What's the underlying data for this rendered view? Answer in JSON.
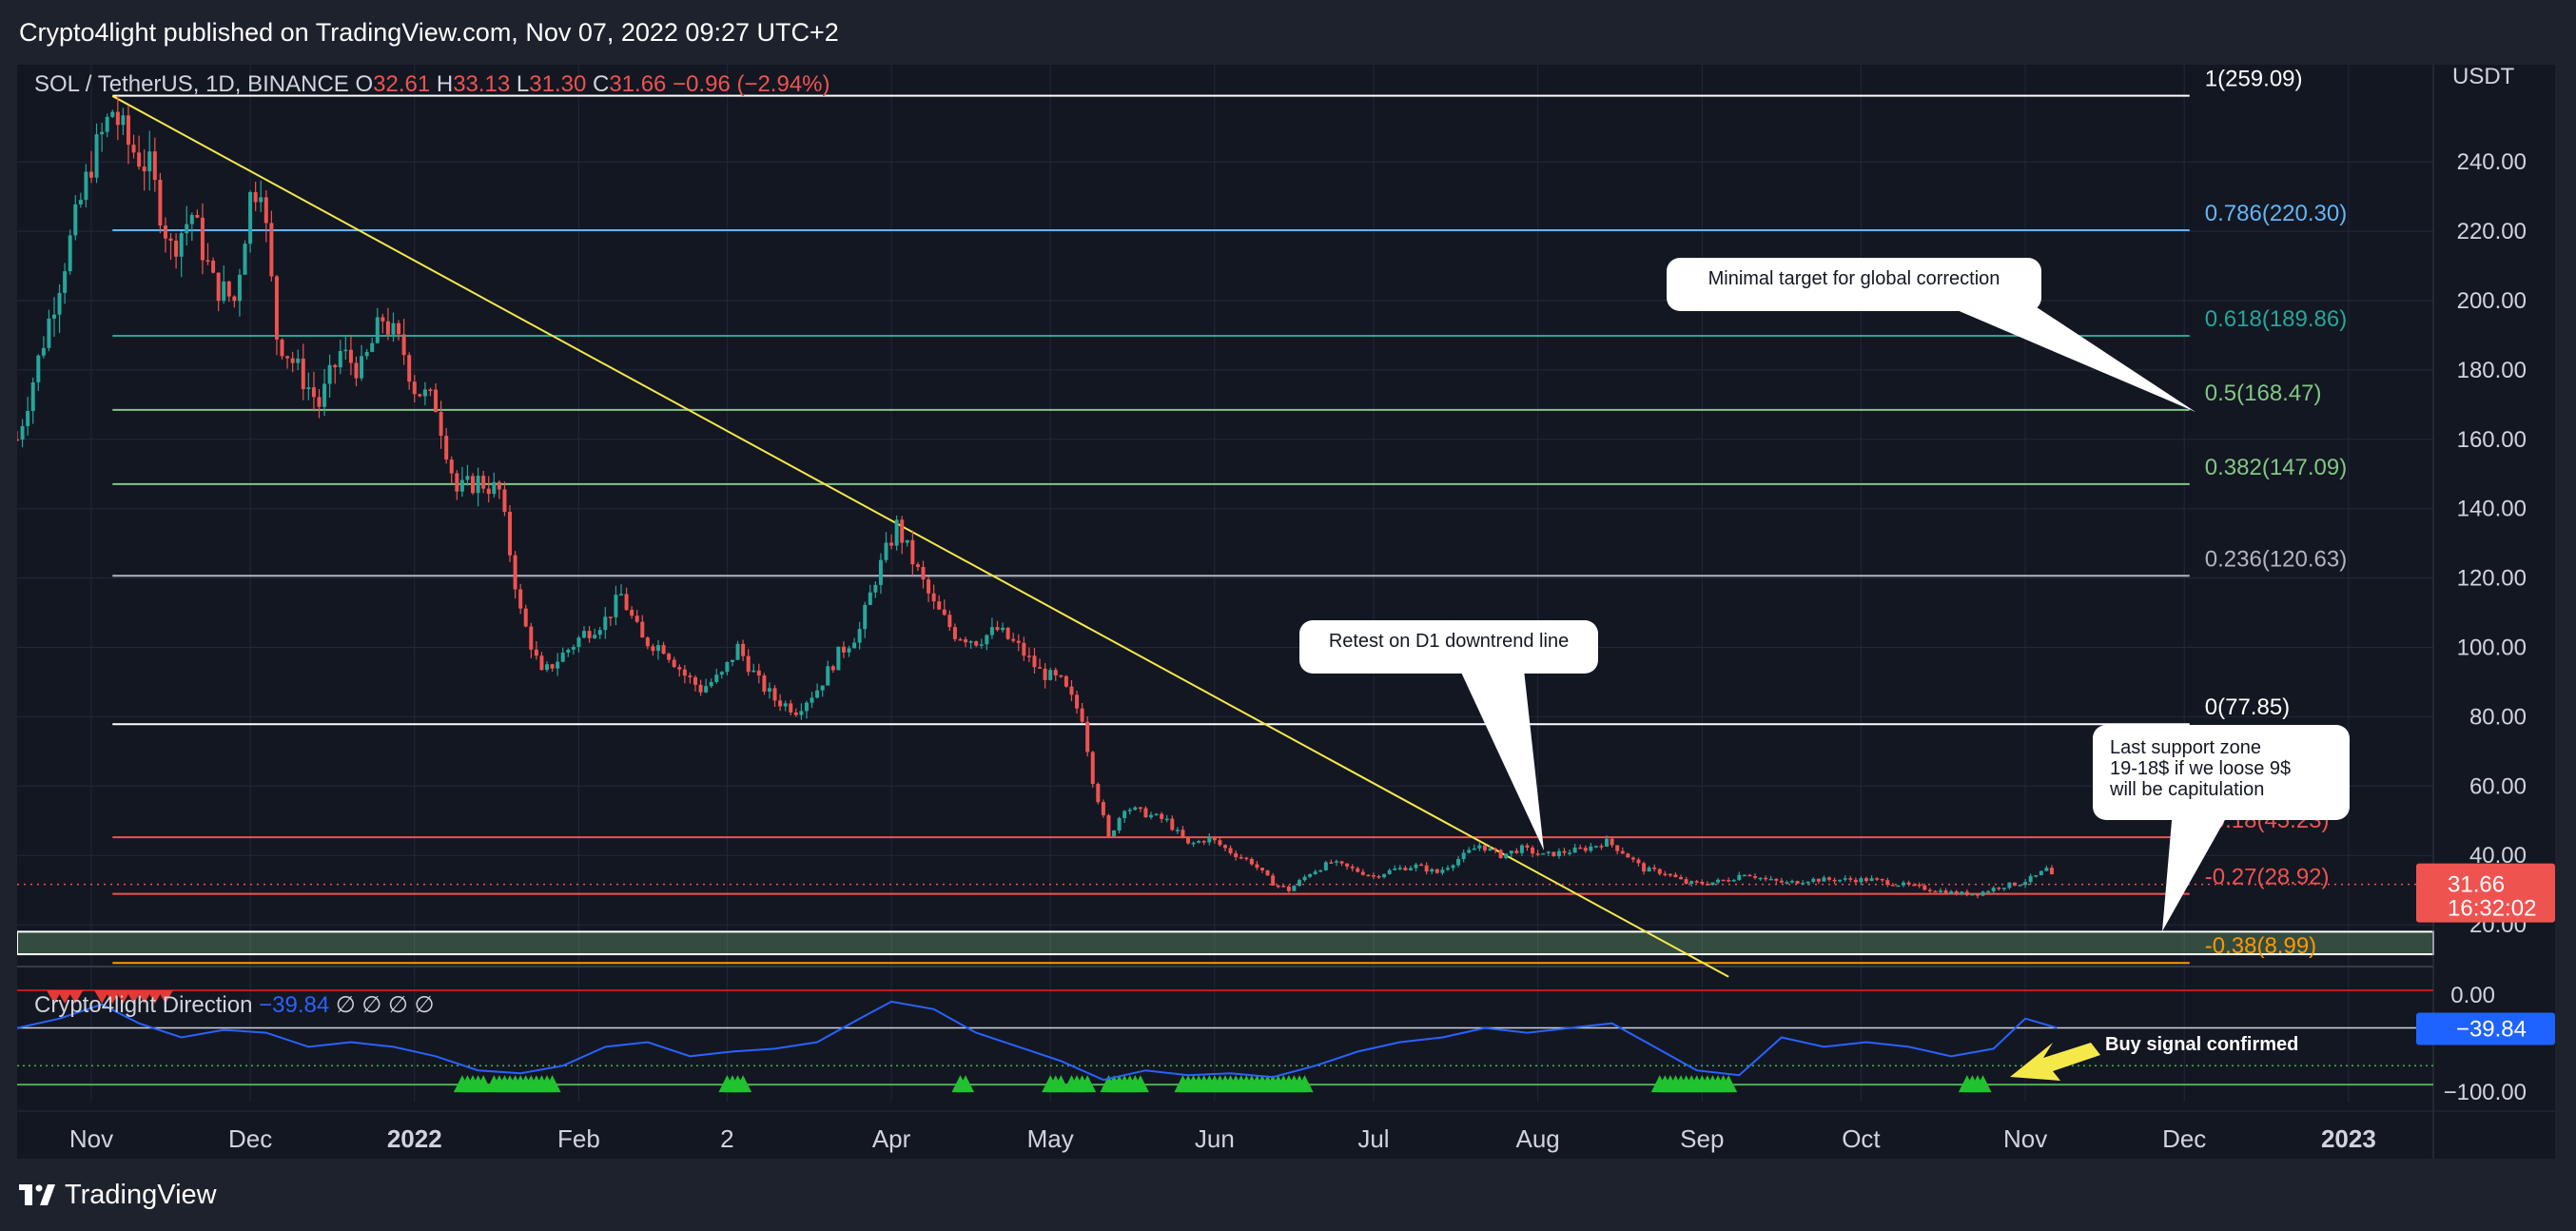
{
  "header": {
    "published_line": "Crypto4light published on TradingView.com, Nov 07, 2022 09:27 UTC+2"
  },
  "footer": {
    "brand": "TradingView",
    "logo_icon": "tradingview-logo-icon"
  },
  "colors": {
    "background": "#131722",
    "frame": "#1e222d",
    "up": "#26a69a",
    "down": "#ef5350",
    "trendline": "#f5e94a",
    "indicator": "#2962ff",
    "callout": "#ffffff",
    "fib_1": "#ffffff",
    "fib_0786": "#64b5f6",
    "fib_0618": "#26a69a",
    "fib_05": "#81c784",
    "fib_0382": "#81c784",
    "fib_0236": "#b2b5be",
    "fib_0": "#ffffff",
    "fib_m018": "#ef5350",
    "fib_m027": "#ef5350",
    "fib_m038": "#ff9800"
  },
  "chart_data": [
    {
      "type": "candlestick",
      "legend": {
        "symbol": "SOL / TetherUS, 1D, BINANCE",
        "o_label": "O",
        "o_value": "32.61",
        "h_label": "H",
        "h_value": "33.13",
        "l_label": "L",
        "l_value": "31.30",
        "c_label": "C",
        "c_value": "31.66",
        "change": "−0.96 (−2.94%)"
      },
      "currency": "USDT",
      "y_axis_labels": [
        "240.00",
        "220.00",
        "200.00",
        "180.00",
        "160.00",
        "140.00",
        "120.00",
        "100.00",
        "80.00",
        "60.00",
        "40.00",
        "20.00"
      ],
      "y_ticks": [
        240,
        220,
        200,
        180,
        160,
        140,
        120,
        100,
        80,
        60,
        40,
        20
      ],
      "ylim": [
        0,
        262
      ],
      "x_axis_labels": [
        "Nov",
        "Dec",
        "2022",
        "Feb",
        "2",
        "Apr",
        "May",
        "Jun",
        "Jul",
        "Aug",
        "Sep",
        "Oct",
        "Nov",
        "Dec",
        "2023"
      ],
      "x_ticks": [
        "2021-11-01",
        "2021-12-01",
        "2022-01-01",
        "2022-02-01",
        "2022-03-01",
        "2022-04-01",
        "2022-05-01",
        "2022-06-01",
        "2022-07-01",
        "2022-08-01",
        "2022-09-01",
        "2022-10-01",
        "2022-11-01",
        "2022-12-01",
        "2023-01-01"
      ],
      "x_range": [
        "2021-10-18",
        "2023-01-17"
      ],
      "series": [
        {
          "values": [
            [
              "2021-10-18",
              160
            ],
            [
              "2021-10-25",
              200
            ],
            [
              "2021-11-01",
              240
            ],
            [
              "2021-11-05",
              255
            ],
            [
              "2021-11-08",
              245
            ],
            [
              "2021-11-12",
              238
            ],
            [
              "2021-11-16",
              215
            ],
            [
              "2021-11-20",
              225
            ],
            [
              "2021-11-24",
              205
            ],
            [
              "2021-11-28",
              200
            ],
            [
              "2021-12-01",
              230
            ],
            [
              "2021-12-03",
              235
            ],
            [
              "2021-12-06",
              190
            ],
            [
              "2021-12-10",
              180
            ],
            [
              "2021-12-14",
              170
            ],
            [
              "2021-12-18",
              185
            ],
            [
              "2021-12-22",
              180
            ],
            [
              "2021-12-26",
              195
            ],
            [
              "2021-12-30",
              185
            ],
            [
              "2022-01-01",
              175
            ],
            [
              "2022-01-05",
              170
            ],
            [
              "2022-01-09",
              145
            ],
            [
              "2022-01-13",
              148
            ],
            [
              "2022-01-17",
              145
            ],
            [
              "2022-01-21",
              110
            ],
            [
              "2022-01-25",
              92
            ],
            [
              "2022-01-29",
              98
            ],
            [
              "2022-02-02",
              104
            ],
            [
              "2022-02-06",
              108
            ],
            [
              "2022-02-09",
              115
            ],
            [
              "2022-02-13",
              102
            ],
            [
              "2022-02-17",
              100
            ],
            [
              "2022-02-21",
              92
            ],
            [
              "2022-02-24",
              88
            ],
            [
              "2022-02-28",
              92
            ],
            [
              "2022-03-03",
              100
            ],
            [
              "2022-03-07",
              90
            ],
            [
              "2022-03-10",
              85
            ],
            [
              "2022-03-14",
              82
            ],
            [
              "2022-03-18",
              88
            ],
            [
              "2022-03-22",
              98
            ],
            [
              "2022-03-26",
              105
            ],
            [
              "2022-03-29",
              120
            ],
            [
              "2022-04-02",
              135
            ],
            [
              "2022-04-05",
              125
            ],
            [
              "2022-04-09",
              112
            ],
            [
              "2022-04-13",
              104
            ],
            [
              "2022-04-17",
              102
            ],
            [
              "2022-04-21",
              105
            ],
            [
              "2022-04-25",
              100
            ],
            [
              "2022-04-29",
              93
            ],
            [
              "2022-05-03",
              90
            ],
            [
              "2022-05-07",
              80
            ],
            [
              "2022-05-09",
              62
            ],
            [
              "2022-05-12",
              45
            ],
            [
              "2022-05-15",
              54
            ],
            [
              "2022-05-19",
              52
            ],
            [
              "2022-05-23",
              50
            ],
            [
              "2022-05-27",
              43
            ],
            [
              "2022-05-31",
              45
            ],
            [
              "2022-06-04",
              41
            ],
            [
              "2022-06-08",
              38
            ],
            [
              "2022-06-12",
              32
            ],
            [
              "2022-06-15",
              30
            ],
            [
              "2022-06-19",
              35
            ],
            [
              "2022-06-23",
              38
            ],
            [
              "2022-06-27",
              36
            ],
            [
              "2022-07-01",
              34
            ],
            [
              "2022-07-05",
              36
            ],
            [
              "2022-07-09",
              37
            ],
            [
              "2022-07-13",
              35
            ],
            [
              "2022-07-17",
              39
            ],
            [
              "2022-07-21",
              43
            ],
            [
              "2022-07-25",
              40
            ],
            [
              "2022-07-29",
              42
            ],
            [
              "2022-08-02",
              40
            ],
            [
              "2022-08-06",
              41
            ],
            [
              "2022-08-10",
              42
            ],
            [
              "2022-08-14",
              44
            ],
            [
              "2022-08-17",
              41
            ],
            [
              "2022-08-21",
              36
            ],
            [
              "2022-08-25",
              35
            ],
            [
              "2022-08-29",
              32
            ],
            [
              "2022-09-02",
              32
            ],
            [
              "2022-09-06",
              33
            ],
            [
              "2022-09-09",
              35
            ],
            [
              "2022-09-13",
              33
            ],
            [
              "2022-09-17",
              32
            ],
            [
              "2022-09-21",
              33
            ],
            [
              "2022-09-25",
              33
            ],
            [
              "2022-09-29",
              33
            ],
            [
              "2022-10-03",
              33
            ],
            [
              "2022-10-07",
              32
            ],
            [
              "2022-10-11",
              31
            ],
            [
              "2022-10-15",
              30
            ],
            [
              "2022-10-19",
              29
            ],
            [
              "2022-10-23",
              29
            ],
            [
              "2022-10-27",
              31
            ],
            [
              "2022-10-31",
              32
            ],
            [
              "2022-11-03",
              34
            ],
            [
              "2022-11-05",
              36
            ],
            [
              "2022-11-07",
              31.66
            ]
          ]
        }
      ],
      "price_tag": {
        "value": "31.66",
        "countdown": "16:32:02"
      },
      "fib_levels": [
        {
          "ratio": "1",
          "value": "259.09",
          "price": 259.09,
          "color": "#ffffff"
        },
        {
          "ratio": "0.786",
          "value": "220.30",
          "price": 220.3,
          "color": "#64b5f6"
        },
        {
          "ratio": "0.618",
          "value": "189.86",
          "price": 189.86,
          "color": "#26a69a"
        },
        {
          "ratio": "0.5",
          "value": "168.47",
          "price": 168.47,
          "color": "#81c784"
        },
        {
          "ratio": "0.382",
          "value": "147.09",
          "price": 147.09,
          "color": "#81c784"
        },
        {
          "ratio": "0.236",
          "value": "120.63",
          "price": 120.63,
          "color": "#b2b5be"
        },
        {
          "ratio": "0",
          "value": "77.85",
          "price": 77.85,
          "color": "#ffffff"
        },
        {
          "ratio": "-0.18",
          "value": "45.23",
          "price": 45.23,
          "color": "#ef5350"
        },
        {
          "ratio": "-0.27",
          "value": "28.92",
          "price": 28.92,
          "color": "#ef5350"
        },
        {
          "ratio": "-0.38",
          "value": "8.99",
          "price": 8.99,
          "color": "#ff9800"
        }
      ],
      "support_zone": {
        "from": 11.5,
        "to": 18
      },
      "trendline": {
        "from": [
          "2021-11-05",
          259
        ],
        "to": [
          "2022-09-06",
          5
        ]
      },
      "annotations": [
        {
          "text": "Minimal target for global correction"
        },
        {
          "text": "Retest on D1 downtrend line"
        },
        {
          "text": "Last support zone 19-18$ if we loose 9$ will be capitulation",
          "lines": [
            "Last support zone",
            "19-18$ if we loose 9$",
            "will be capitulation"
          ]
        }
      ]
    },
    {
      "type": "line",
      "legend_name": "Crypto4light Direction",
      "legend_value": "−39.84",
      "legend_symbols": "∅ ∅ ∅ ∅",
      "y_axis_labels": [
        "0.00",
        "−100.00"
      ],
      "y_ticks": [
        0,
        -100
      ],
      "ylim": [
        -110,
        5
      ],
      "levels": [
        0,
        -39.84,
        -80
      ],
      "current_tag": "−39.84",
      "annotation": "Buy signal confirmed",
      "series": [
        {
          "values": [
            [
              "2021-10-18",
              -40
            ],
            [
              "2021-10-26",
              -30
            ],
            [
              "2021-11-03",
              -15
            ],
            [
              "2021-11-10",
              -35
            ],
            [
              "2021-11-18",
              -50
            ],
            [
              "2021-11-26",
              -42
            ],
            [
              "2021-12-04",
              -45
            ],
            [
              "2021-12-12",
              -60
            ],
            [
              "2021-12-20",
              -55
            ],
            [
              "2021-12-28",
              -60
            ],
            [
              "2022-01-05",
              -70
            ],
            [
              "2022-01-13",
              -85
            ],
            [
              "2022-01-21",
              -88
            ],
            [
              "2022-01-29",
              -80
            ],
            [
              "2022-02-06",
              -60
            ],
            [
              "2022-02-14",
              -55
            ],
            [
              "2022-02-22",
              -70
            ],
            [
              "2022-03-02",
              -65
            ],
            [
              "2022-03-10",
              -62
            ],
            [
              "2022-03-18",
              -55
            ],
            [
              "2022-03-26",
              -30
            ],
            [
              "2022-04-01",
              -12
            ],
            [
              "2022-04-09",
              -20
            ],
            [
              "2022-04-17",
              -45
            ],
            [
              "2022-04-25",
              -60
            ],
            [
              "2022-05-03",
              -75
            ],
            [
              "2022-05-11",
              -95
            ],
            [
              "2022-05-19",
              -85
            ],
            [
              "2022-05-27",
              -90
            ],
            [
              "2022-06-04",
              -88
            ],
            [
              "2022-06-12",
              -92
            ],
            [
              "2022-06-20",
              -80
            ],
            [
              "2022-06-28",
              -65
            ],
            [
              "2022-07-06",
              -55
            ],
            [
              "2022-07-14",
              -50
            ],
            [
              "2022-07-22",
              -40
            ],
            [
              "2022-07-30",
              -45
            ],
            [
              "2022-08-07",
              -40
            ],
            [
              "2022-08-15",
              -35
            ],
            [
              "2022-08-23",
              -60
            ],
            [
              "2022-08-31",
              -85
            ],
            [
              "2022-09-08",
              -90
            ],
            [
              "2022-09-16",
              -50
            ],
            [
              "2022-09-24",
              -60
            ],
            [
              "2022-10-02",
              -55
            ],
            [
              "2022-10-10",
              -60
            ],
            [
              "2022-10-18",
              -70
            ],
            [
              "2022-10-26",
              -62
            ],
            [
              "2022-11-01",
              -30
            ],
            [
              "2022-11-07",
              -39.84
            ]
          ]
        }
      ],
      "buy_signal_ranges": [
        [
          "2022-01-10",
          "2022-01-14"
        ],
        [
          "2022-01-16",
          "2022-01-27"
        ],
        [
          "2022-03-01",
          "2022-03-04"
        ],
        [
          "2022-04-14",
          "2022-04-15"
        ],
        [
          "2022-05-01",
          "2022-05-03"
        ],
        [
          "2022-05-05",
          "2022-05-08"
        ],
        [
          "2022-05-12",
          "2022-05-18"
        ],
        [
          "2022-05-26",
          "2022-06-18"
        ],
        [
          "2022-08-24",
          "2022-09-06"
        ],
        [
          "2022-10-21",
          "2022-10-24"
        ]
      ],
      "sell_signal_ranges": [
        [
          "2021-10-25",
          "2021-10-29"
        ],
        [
          "2021-11-03",
          "2021-11-15"
        ]
      ]
    }
  ]
}
